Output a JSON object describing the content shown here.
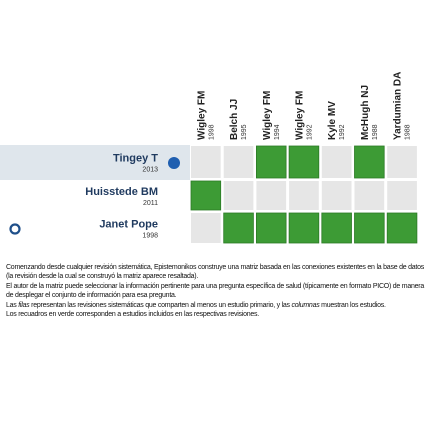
{
  "matrix": {
    "columns": [
      {
        "name": "Wigley FM",
        "year": "1998"
      },
      {
        "name": "Belch JJ",
        "year": "1995"
      },
      {
        "name": "Wigley FM",
        "year": "1994"
      },
      {
        "name": "Wigley FM",
        "year": "1992"
      },
      {
        "name": "Kyle MV",
        "year": "1992"
      },
      {
        "name": "McHugh NJ",
        "year": "1988"
      },
      {
        "name": "Yardumian DA",
        "year": "1988"
      }
    ],
    "rows": [
      {
        "name": "Tingey T",
        "year": "2013",
        "selected": true,
        "cells": [
          false,
          false,
          true,
          true,
          false,
          true,
          false
        ]
      },
      {
        "name": "Huisstede BM",
        "year": "2011",
        "selected": false,
        "cells": [
          true,
          false,
          false,
          false,
          false,
          false,
          false
        ]
      },
      {
        "name": "Janet Pope",
        "year": "1998",
        "selected": false,
        "cells": [
          false,
          true,
          true,
          true,
          true,
          true,
          true
        ]
      }
    ]
  },
  "description": {
    "paragraphs": [
      [
        "Comenzando desde cualquier revisión sistemática, Epistemonikos construye una matriz basada en las conexiones existentes en la base de datos (la revisión desde la cual se construyó la matriz aparece resaltada)."
      ],
      [
        "El autor de la matriz puede seleccionar la información pertinente para una pregunta específica de salud (típicamente en formato PICO) de manera de desplegar el conjunto de información para esa pregunta."
      ],
      [
        "Las ",
        "filas",
        " representan las revisiones sistemáticas que comparten al menos un estudio primario, y las ",
        "columnas",
        " muestran los estudios."
      ],
      [
        "Los recuadros en verde corresponden a estudios incluidos en las respectivas revisiones."
      ]
    ]
  }
}
